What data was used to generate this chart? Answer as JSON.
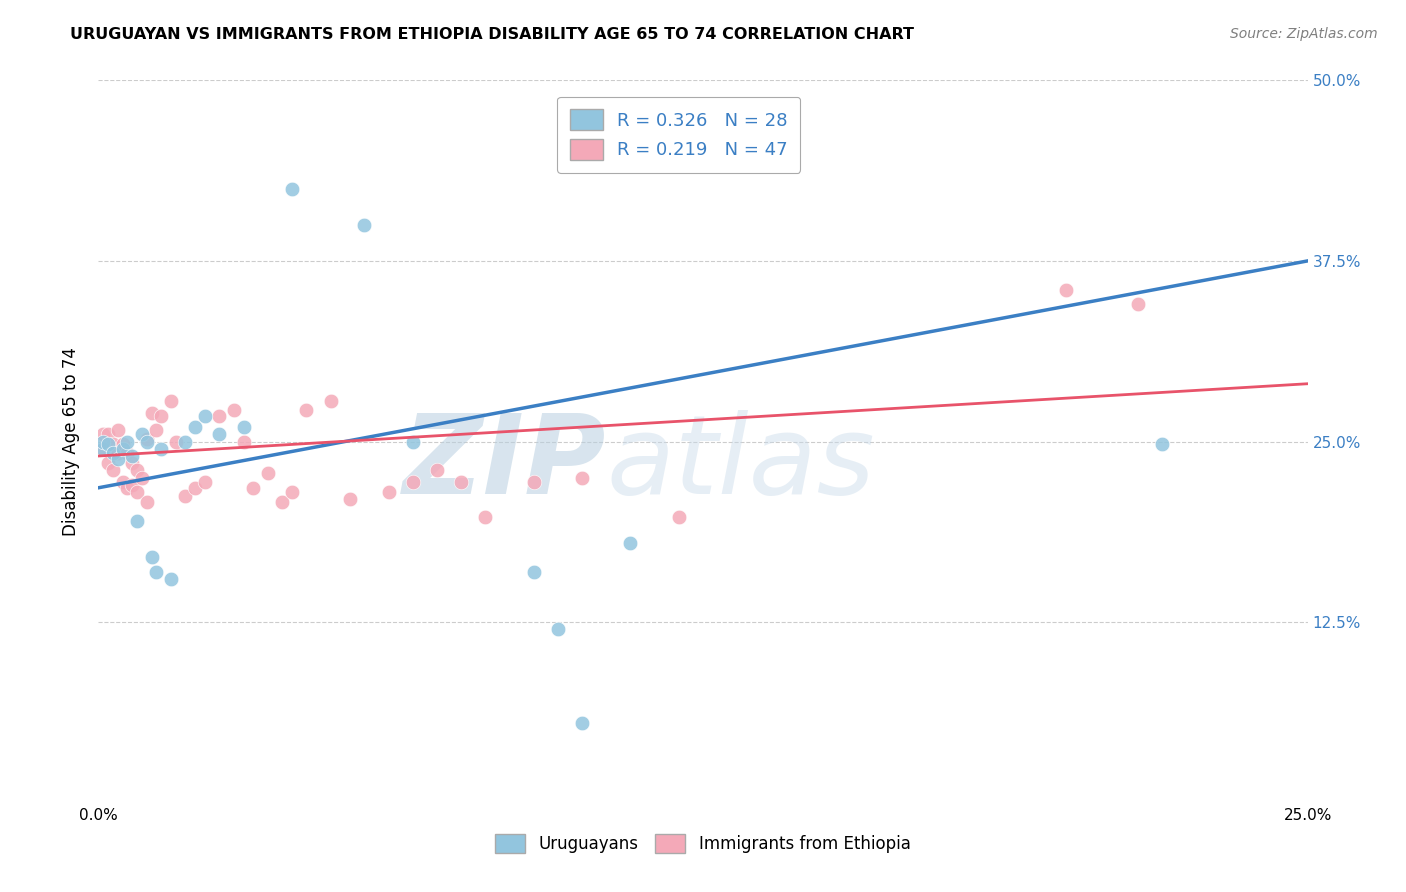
{
  "title": "URUGUAYAN VS IMMIGRANTS FROM ETHIOPIA DISABILITY AGE 65 TO 74 CORRELATION CHART",
  "source": "Source: ZipAtlas.com",
  "ylabel": "Disability Age 65 to 74",
  "xmin": 0.0,
  "xmax": 0.25,
  "ymin": 0.0,
  "ymax": 0.5,
  "blue_color": "#92c5de",
  "pink_color": "#f4a9b8",
  "blue_line_color": "#3b7fc4",
  "pink_line_color": "#e8536a",
  "legend_text_color": "#3b7fc4",
  "blue_R": 0.326,
  "blue_N": 28,
  "pink_R": 0.219,
  "pink_N": 47,
  "background_color": "#ffffff",
  "grid_color": "#cccccc",
  "watermark_color": "#c8daea",
  "uruguayans_x": [
    0.001,
    0.001,
    0.002,
    0.003,
    0.004,
    0.005,
    0.006,
    0.007,
    0.008,
    0.009,
    0.01,
    0.011,
    0.012,
    0.013,
    0.015,
    0.018,
    0.02,
    0.022,
    0.025,
    0.03,
    0.04,
    0.055,
    0.065,
    0.09,
    0.095,
    0.1,
    0.11,
    0.22
  ],
  "uruguayans_y": [
    0.245,
    0.25,
    0.248,
    0.242,
    0.238,
    0.245,
    0.25,
    0.24,
    0.195,
    0.255,
    0.25,
    0.17,
    0.16,
    0.245,
    0.155,
    0.25,
    0.26,
    0.268,
    0.255,
    0.26,
    0.425,
    0.4,
    0.25,
    0.16,
    0.12,
    0.055,
    0.18,
    0.248
  ],
  "ethiopia_x": [
    0.001,
    0.001,
    0.002,
    0.002,
    0.003,
    0.003,
    0.004,
    0.004,
    0.005,
    0.005,
    0.006,
    0.006,
    0.007,
    0.007,
    0.008,
    0.008,
    0.009,
    0.01,
    0.01,
    0.011,
    0.012,
    0.013,
    0.015,
    0.016,
    0.018,
    0.02,
    0.022,
    0.025,
    0.028,
    0.03,
    0.032,
    0.035,
    0.038,
    0.04,
    0.043,
    0.048,
    0.052,
    0.06,
    0.065,
    0.07,
    0.075,
    0.08,
    0.09,
    0.1,
    0.12,
    0.2,
    0.215
  ],
  "ethiopia_y": [
    0.245,
    0.255,
    0.235,
    0.255,
    0.23,
    0.248,
    0.242,
    0.258,
    0.222,
    0.248,
    0.218,
    0.242,
    0.22,
    0.235,
    0.215,
    0.23,
    0.225,
    0.208,
    0.252,
    0.27,
    0.258,
    0.268,
    0.278,
    0.25,
    0.212,
    0.218,
    0.222,
    0.268,
    0.272,
    0.25,
    0.218,
    0.228,
    0.208,
    0.215,
    0.272,
    0.278,
    0.21,
    0.215,
    0.222,
    0.23,
    0.222,
    0.198,
    0.222,
    0.225,
    0.198,
    0.355,
    0.345
  ],
  "blue_line_x0": 0.0,
  "blue_line_y0": 0.218,
  "blue_line_x1": 0.25,
  "blue_line_y1": 0.375,
  "pink_line_x0": 0.0,
  "pink_line_y0": 0.24,
  "pink_line_x1": 0.25,
  "pink_line_y1": 0.29
}
